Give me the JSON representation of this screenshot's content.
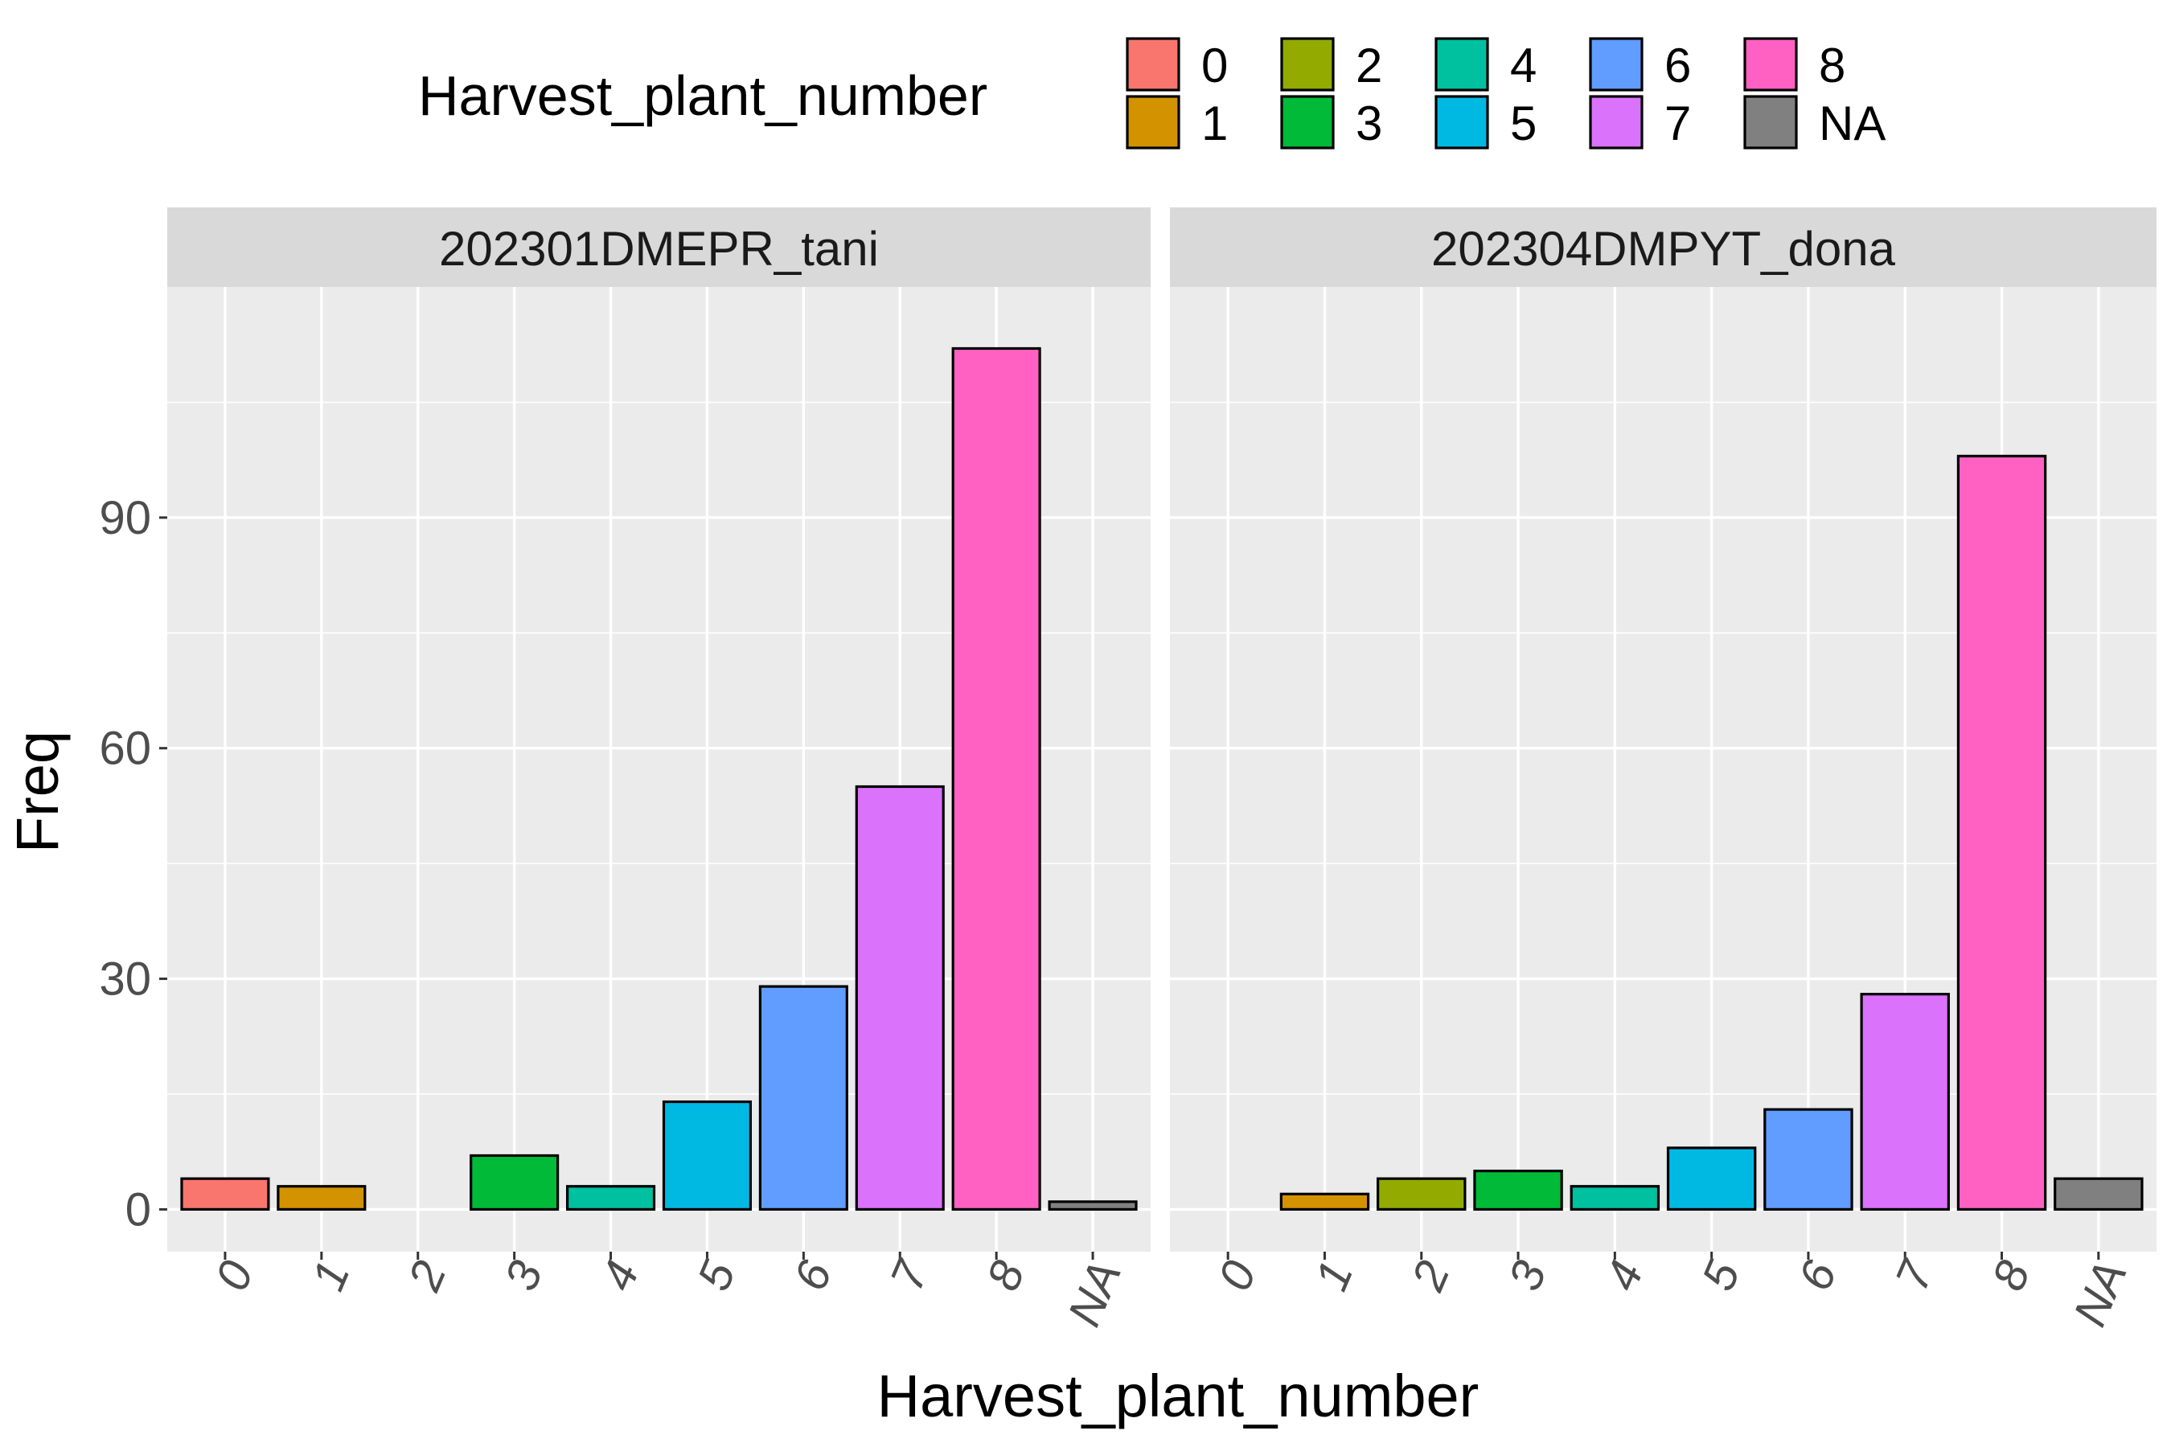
{
  "chart_data": {
    "type": "bar",
    "xlabel": "Harvest_plant_number",
    "ylabel": "Freq",
    "categories": [
      "0",
      "1",
      "2",
      "3",
      "4",
      "5",
      "6",
      "7",
      "8",
      "NA"
    ],
    "ylim": [
      -5.5,
      120
    ],
    "yticks": [
      0,
      30,
      60,
      90
    ],
    "grid": true,
    "legend": {
      "title": "Harvest_plant_number",
      "placement": "top",
      "entries": [
        "0",
        "1",
        "2",
        "3",
        "4",
        "5",
        "6",
        "7",
        "8",
        "NA"
      ]
    },
    "colors": [
      "#F8766D",
      "#D39200",
      "#93AA00",
      "#00BA38",
      "#00C19F",
      "#00B9E3",
      "#619CFF",
      "#DB72FB",
      "#FF61C3",
      "#808080"
    ],
    "panels": [
      {
        "title": "202301DMEPR_tani",
        "values": [
          4,
          3,
          0,
          7,
          3,
          14,
          29,
          55,
          112,
          1
        ]
      },
      {
        "title": "202304DMPYT_dona",
        "values": [
          0,
          2,
          4,
          5,
          3,
          8,
          13,
          28,
          98,
          4
        ]
      }
    ]
  }
}
